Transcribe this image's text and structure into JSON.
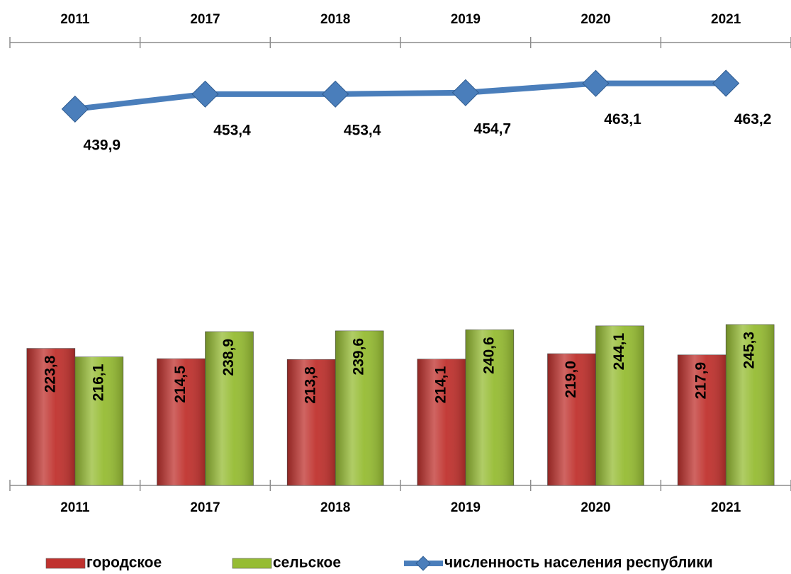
{
  "chart_data": {
    "type": "bar",
    "categories": [
      "2011",
      "2017",
      "2018",
      "2019",
      "2020",
      "2021"
    ],
    "ylim": [
      100,
      500
    ],
    "series": [
      {
        "name": "городское",
        "type": "bar",
        "color": "#c0322e",
        "values": [
          223.8,
          214.5,
          213.8,
          214.1,
          219.0,
          217.9
        ],
        "value_labels": [
          "223,8",
          "214,5",
          "213,8",
          "214,1",
          "219,0",
          "217,9"
        ]
      },
      {
        "name": "сельское",
        "type": "bar",
        "color": "#96bc33",
        "values": [
          216.1,
          238.9,
          239.6,
          240.6,
          244.1,
          245.3
        ],
        "value_labels": [
          "216,1",
          "238,9",
          "239,6",
          "240,6",
          "244,1",
          "245,3"
        ]
      },
      {
        "name": "численность населения республики",
        "type": "line",
        "color": "#4a7ebb",
        "values": [
          439.9,
          453.4,
          453.4,
          454.7,
          463.1,
          463.2
        ],
        "value_labels": [
          "439,9",
          "453,4",
          "453,4",
          "454,7",
          "463,1",
          "463,2"
        ]
      }
    ]
  }
}
